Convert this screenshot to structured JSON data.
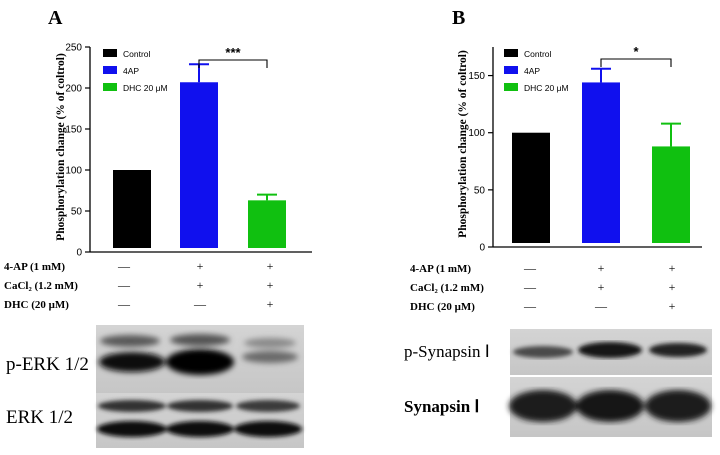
{
  "panels": [
    {
      "letter": "A",
      "ylabel": "Phosphorylation change (% of coltrol)",
      "yticks": [
        "0",
        "50",
        "100",
        "150",
        "200",
        "250"
      ],
      "legend": [
        "Control",
        "4AP",
        "DHC 20 μM"
      ],
      "significance": "***",
      "conditions": [
        {
          "label": "4-AP (1 mM)",
          "marks": [
            "—",
            "+",
            "+"
          ]
        },
        {
          "label": "CaCl₂ (1.2 mM)",
          "marks": [
            "—",
            "+",
            "+"
          ]
        },
        {
          "label": "DHC (20 μM)",
          "marks": [
            "—",
            "—",
            "+"
          ]
        }
      ],
      "blots": [
        "p-ERK 1/2",
        "ERK 1/2"
      ]
    },
    {
      "letter": "B",
      "ylabel": "Phosphorylation change (% of coltrol)",
      "yticks": [
        "0",
        "50",
        "100",
        "150"
      ],
      "legend": [
        "Control",
        "4AP",
        "DHC 20 μM"
      ],
      "significance": "*",
      "conditions": [
        {
          "label": "4-AP (1 mM)",
          "marks": [
            "—",
            "+",
            "+"
          ]
        },
        {
          "label": "CaCl₂ (1.2 mM)",
          "marks": [
            "—",
            "+",
            "+"
          ]
        },
        {
          "label": "DHC (20 μM)",
          "marks": [
            "—",
            "—",
            "+"
          ]
        }
      ],
      "blots": [
        "p-Synapsin Ⅰ",
        "Synapsin Ⅰ"
      ]
    }
  ],
  "chart_data": [
    {
      "type": "bar",
      "title": "",
      "ylabel": "Phosphorylation change (% of coltrol)",
      "ylim": [
        0,
        250
      ],
      "categories": [
        "Control",
        "4AP",
        "DHC 20 μM"
      ],
      "values": [
        100,
        207,
        63
      ],
      "errors": [
        0,
        22,
        7
      ],
      "colors": [
        "#000000",
        "#1010ee",
        "#10c010"
      ],
      "grid": false,
      "legend_position": "top-left"
    },
    {
      "type": "bar",
      "title": "",
      "ylabel": "Phosphorylation change (% of coltrol)",
      "ylim": [
        0,
        175
      ],
      "categories": [
        "Control",
        "4AP",
        "DHC 20 μM"
      ],
      "values": [
        100,
        144,
        88
      ],
      "errors": [
        0,
        12,
        20
      ],
      "colors": [
        "#000000",
        "#1010ee",
        "#10c010"
      ],
      "grid": false,
      "legend_position": "top-left"
    }
  ]
}
